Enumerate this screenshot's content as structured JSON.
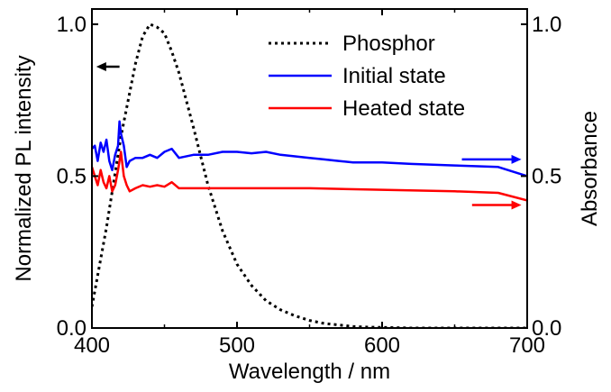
{
  "chart_data": {
    "type": "line",
    "xlabel": "Wavelength / nm",
    "ylabel_left": "Normalized PL intensity",
    "ylabel_right": "Absorbance",
    "xlim": [
      400,
      700
    ],
    "ylim_left": [
      0.0,
      1.05
    ],
    "ylim_right": [
      0.0,
      1.05
    ],
    "x_ticks": [
      400,
      500,
      600,
      700
    ],
    "x_tick_labels": [
      "400",
      "500",
      "600",
      "700"
    ],
    "y_ticks_left": [
      0.0,
      0.5,
      1.0
    ],
    "y_tick_labels_left": [
      "0.0",
      "0.5",
      "1.0"
    ],
    "y_ticks_right": [
      0.0,
      0.5,
      1.0
    ],
    "y_tick_labels_right": [
      "0.0",
      "0.5",
      "1.0"
    ],
    "grid": false,
    "legend_position": "top-right",
    "series": [
      {
        "name": "Phosphor",
        "axis": "left",
        "color": "#000000",
        "style": "dotted",
        "x": [
          400,
          410,
          420,
          430,
          435,
          440,
          445,
          450,
          455,
          460,
          470,
          480,
          490,
          500,
          510,
          520,
          530,
          540,
          550,
          560,
          570,
          580,
          590,
          600,
          620,
          650,
          700
        ],
        "y": [
          0.07,
          0.33,
          0.63,
          0.87,
          0.96,
          1.0,
          0.99,
          0.97,
          0.91,
          0.84,
          0.66,
          0.47,
          0.32,
          0.21,
          0.14,
          0.09,
          0.06,
          0.04,
          0.025,
          0.015,
          0.01,
          0.005,
          0.003,
          0.002,
          0.0,
          0.0,
          0.0
        ]
      },
      {
        "name": "Initial state",
        "axis": "right",
        "color": "#0000ff",
        "style": "solid",
        "x": [
          400,
          402,
          404,
          406,
          408,
          410,
          412,
          414,
          416,
          418,
          419,
          420,
          422,
          424,
          426,
          430,
          435,
          440,
          445,
          450,
          455,
          460,
          470,
          480,
          490,
          500,
          510,
          520,
          530,
          540,
          550,
          560,
          570,
          580,
          600,
          620,
          650,
          680,
          700
        ],
        "y": [
          0.59,
          0.6,
          0.55,
          0.61,
          0.58,
          0.62,
          0.55,
          0.52,
          0.57,
          0.6,
          0.68,
          0.64,
          0.6,
          0.53,
          0.55,
          0.56,
          0.56,
          0.57,
          0.56,
          0.58,
          0.59,
          0.56,
          0.57,
          0.57,
          0.58,
          0.58,
          0.575,
          0.58,
          0.57,
          0.565,
          0.56,
          0.555,
          0.55,
          0.545,
          0.545,
          0.54,
          0.535,
          0.53,
          0.5
        ]
      },
      {
        "name": "Heated state",
        "axis": "right",
        "color": "#ff0000",
        "style": "solid",
        "x": [
          400,
          402,
          404,
          406,
          408,
          410,
          412,
          414,
          416,
          418,
          420,
          422,
          424,
          426,
          430,
          435,
          440,
          445,
          450,
          455,
          460,
          470,
          480,
          500,
          520,
          550,
          600,
          650,
          680,
          700
        ],
        "y": [
          0.53,
          0.5,
          0.47,
          0.52,
          0.48,
          0.46,
          0.5,
          0.45,
          0.47,
          0.52,
          0.58,
          0.5,
          0.47,
          0.45,
          0.46,
          0.47,
          0.465,
          0.47,
          0.465,
          0.48,
          0.46,
          0.46,
          0.46,
          0.46,
          0.46,
          0.46,
          0.455,
          0.45,
          0.445,
          0.42
        ]
      }
    ],
    "annotations": [
      {
        "type": "arrow",
        "direction": "left",
        "axis": "left",
        "color": "#000000",
        "x_from": 419,
        "x_to": 403,
        "y": 0.86
      },
      {
        "type": "arrow",
        "direction": "right",
        "axis": "right",
        "color": "#0000ff",
        "x_from": 655,
        "x_to": 696,
        "y": 0.555
      },
      {
        "type": "arrow",
        "direction": "right",
        "axis": "right",
        "color": "#ff0000",
        "x_from": 662,
        "x_to": 696,
        "y": 0.405
      }
    ]
  }
}
